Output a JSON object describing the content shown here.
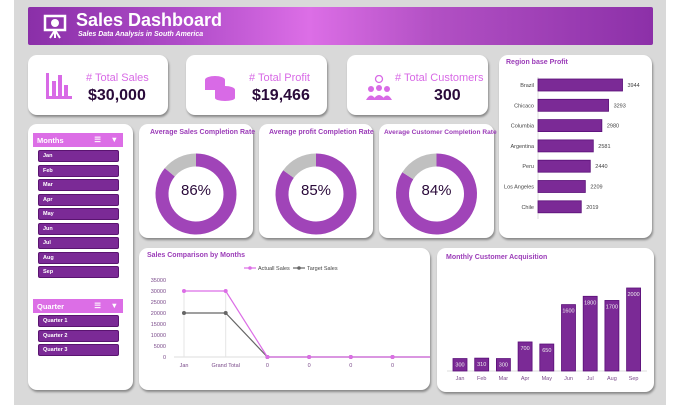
{
  "header": {
    "title": "Sales Dashboard",
    "subtitle": "Sales Data Analysis in South America"
  },
  "kpis": [
    {
      "label": "# Total Sales",
      "value": "$30,000",
      "icon": "bar-chart-icon"
    },
    {
      "label": "# Total Profit",
      "value": "$19,466",
      "icon": "coins-icon"
    },
    {
      "label": "# Total Customers",
      "value": "300",
      "icon": "customers-icon"
    }
  ],
  "slicers": {
    "months": {
      "title": "Months",
      "items": [
        "Jan",
        "Feb",
        "Mar",
        "Apr",
        "May",
        "Jun",
        "Jul",
        "Aug",
        "Sep"
      ]
    },
    "quarter": {
      "title": "Quarter",
      "items": [
        "Quarter 1",
        "Quarter 2",
        "Quarter 3"
      ]
    }
  },
  "colors": {
    "accent": "#dc6ee6",
    "primary": "#7b2a96",
    "donut": "#a044b8",
    "donut_rest": "#c0c0c0",
    "target": "#666666"
  },
  "chart_data": [
    {
      "type": "pie",
      "title": "Average Sales Completion Rate",
      "values": [
        86,
        14
      ],
      "label": "86%"
    },
    {
      "type": "pie",
      "title": "Average profit Completion Rate",
      "values": [
        85,
        15
      ],
      "label": "85%"
    },
    {
      "type": "pie",
      "title": "Average Customer Completion Rate",
      "values": [
        84,
        16
      ],
      "label": "84%"
    },
    {
      "type": "bar",
      "orientation": "horizontal",
      "title": "Region base Profit",
      "categories": [
        "Brazil",
        "Chicaco",
        "Columbia",
        "Argentina",
        "Peru",
        "Los Angeles",
        "Chile"
      ],
      "values": [
        3944,
        3293,
        2980,
        2581,
        2440,
        2209,
        2019
      ]
    },
    {
      "type": "line",
      "title": "Sales Comparison by Months",
      "categories": [
        "Jan",
        "Grand Total",
        "0",
        "0",
        "0",
        "0",
        "0",
        "0",
        "0"
      ],
      "ylim": [
        0,
        35000
      ],
      "yticks": [
        0,
        5000,
        10000,
        15000,
        20000,
        25000,
        30000,
        35000
      ],
      "legend": "top",
      "series": [
        {
          "name": "Actuall Sales",
          "values": [
            30000,
            30000,
            0,
            0,
            0,
            0,
            0,
            0,
            0
          ]
        },
        {
          "name": "Target Sales",
          "values": [
            20000,
            20000,
            0,
            0,
            0,
            0,
            0,
            0,
            0
          ]
        }
      ]
    },
    {
      "type": "bar",
      "title": "Monthly Customer Acquisition",
      "categories": [
        "Jan",
        "Feb",
        "Mar",
        "Apr",
        "May",
        "Jun",
        "Jul",
        "Aug",
        "Sep"
      ],
      "values": [
        300,
        310,
        300,
        700,
        650,
        1600,
        1800,
        1700,
        2000
      ]
    }
  ]
}
